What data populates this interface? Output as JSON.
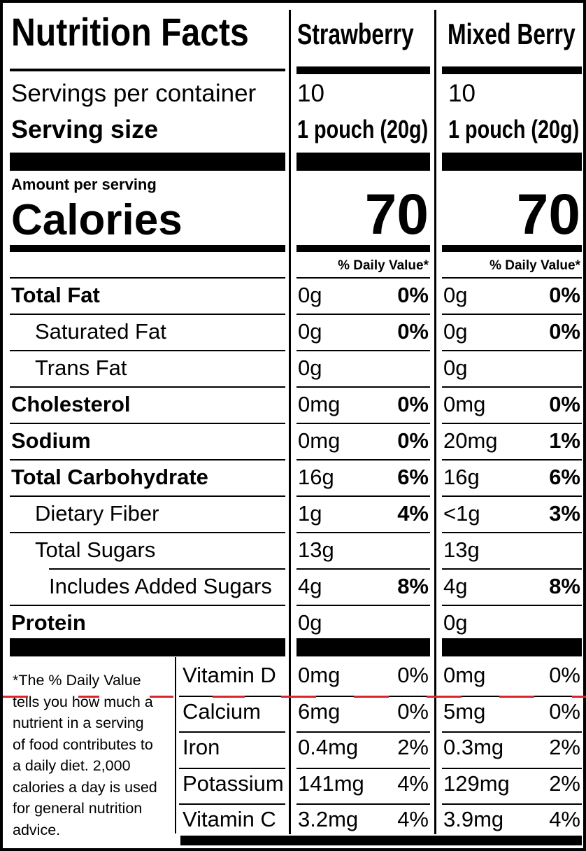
{
  "title": "Nutrition Facts",
  "products": [
    {
      "name": "Strawberry",
      "servings_per_container": "10",
      "serving_size": "1 pouch (20g)",
      "calories": "70",
      "dv_header": "% Daily Value*",
      "nutrients": [
        {
          "amount": "0g",
          "dv": "0%"
        },
        {
          "amount": "0g",
          "dv": "0%"
        },
        {
          "amount": "0g",
          "dv": ""
        },
        {
          "amount": "0mg",
          "dv": "0%"
        },
        {
          "amount": "0mg",
          "dv": "0%"
        },
        {
          "amount": "16g",
          "dv": "6%"
        },
        {
          "amount": "1g",
          "dv": "4%"
        },
        {
          "amount": "13g",
          "dv": ""
        },
        {
          "amount": "4g",
          "dv": "8%"
        },
        {
          "amount": "0g",
          "dv": ""
        }
      ],
      "vitamins": [
        {
          "amount": "0mg",
          "dv": "0%"
        },
        {
          "amount": "6mg",
          "dv": "0%"
        },
        {
          "amount": "0.4mg",
          "dv": "2%"
        },
        {
          "amount": "141mg",
          "dv": "4%"
        },
        {
          "amount": "3.2mg",
          "dv": "4%"
        }
      ]
    },
    {
      "name": "Mixed Berry",
      "servings_per_container": "10",
      "serving_size": "1 pouch (20g)",
      "calories": "70",
      "dv_header": "% Daily Value*",
      "nutrients": [
        {
          "amount": "0g",
          "dv": "0%"
        },
        {
          "amount": "0g",
          "dv": "0%"
        },
        {
          "amount": "0g",
          "dv": ""
        },
        {
          "amount": "0mg",
          "dv": "0%"
        },
        {
          "amount": "20mg",
          "dv": "1%"
        },
        {
          "amount": "16g",
          "dv": "6%"
        },
        {
          "amount": "<1g",
          "dv": "3%"
        },
        {
          "amount": "13g",
          "dv": ""
        },
        {
          "amount": "4g",
          "dv": "8%"
        },
        {
          "amount": "0g",
          "dv": ""
        }
      ],
      "vitamins": [
        {
          "amount": "0mg",
          "dv": "0%"
        },
        {
          "amount": "5mg",
          "dv": "0%"
        },
        {
          "amount": "0.3mg",
          "dv": "2%"
        },
        {
          "amount": "129mg",
          "dv": "2%"
        },
        {
          "amount": "3.9mg",
          "dv": "4%"
        }
      ]
    }
  ],
  "labels": {
    "servings_per_container": "Servings per container",
    "serving_size": "Serving size",
    "amount_per_serving": "Amount per serving",
    "calories": "Calories"
  },
  "nutrients": [
    {
      "name": "Total Fat",
      "bold": true,
      "indent": 0
    },
    {
      "name": "Saturated Fat",
      "bold": false,
      "indent": 1
    },
    {
      "name": "Trans Fat",
      "bold": false,
      "indent": 1
    },
    {
      "name": "Cholesterol",
      "bold": true,
      "indent": 0
    },
    {
      "name": "Sodium",
      "bold": true,
      "indent": 0
    },
    {
      "name": "Total Carbohydrate",
      "bold": true,
      "indent": 0
    },
    {
      "name": "Dietary Fiber",
      "bold": false,
      "indent": 1
    },
    {
      "name": "Total Sugars",
      "bold": false,
      "indent": 1
    },
    {
      "name": "Includes Added Sugars",
      "bold": false,
      "indent": 2
    },
    {
      "name": "Protein",
      "bold": true,
      "indent": 0
    }
  ],
  "vitamins": [
    "Vitamin D",
    "Calcium",
    "Iron",
    "Potassium",
    "Vitamin C"
  ],
  "footnote_lines": [
    "*The % Daily Value",
    "tells you how much a",
    "nutrient in a serving",
    "of food contributes to",
    "a daily diet. 2,000",
    "calories a day is used",
    "for general nutrition",
    "advice."
  ],
  "colors": {
    "ink": "#000000",
    "background": "#ffffff",
    "scan_mark": "#d9262c"
  }
}
